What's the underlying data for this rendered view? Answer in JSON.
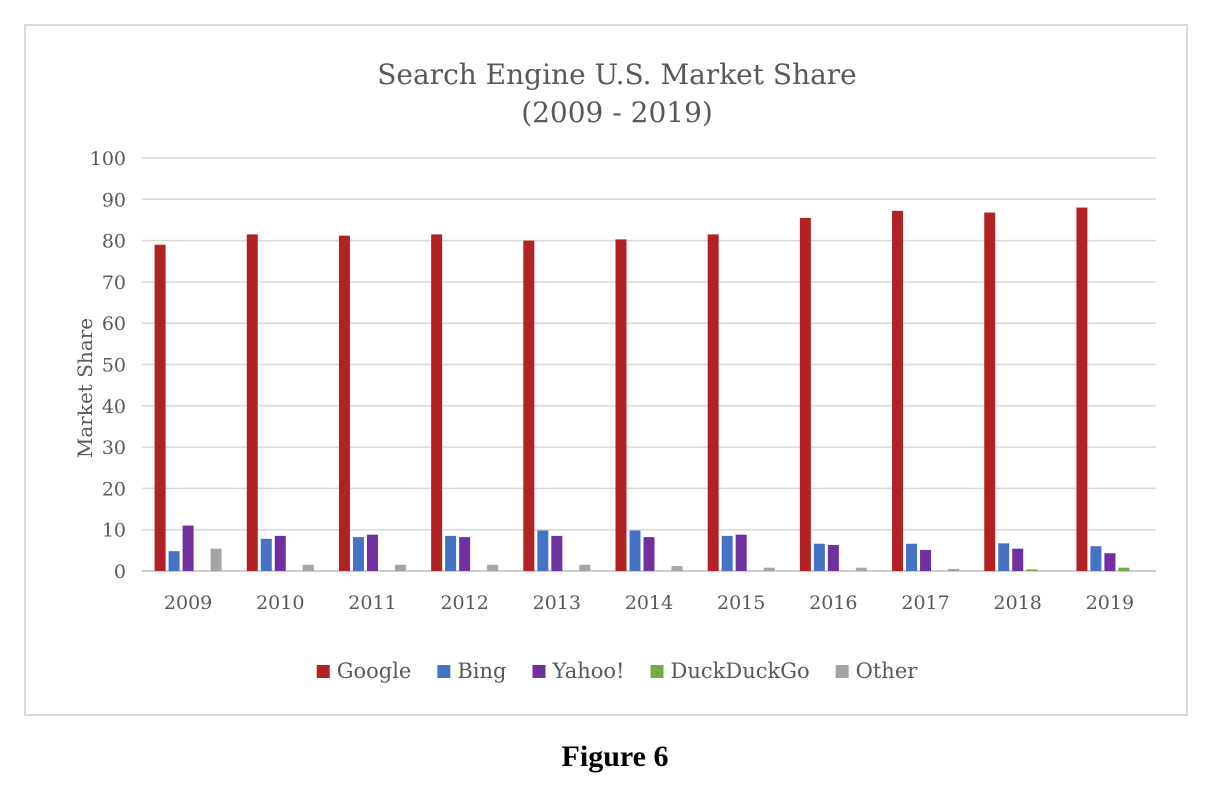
{
  "chart_data": {
    "type": "bar",
    "title": "Search Engine U.S. Market Share",
    "subtitle": "(2009 - 2019)",
    "xlabel": "",
    "ylabel": "Market Share",
    "ylim": [
      0,
      100
    ],
    "yticks": [
      0,
      10,
      20,
      30,
      40,
      50,
      60,
      70,
      80,
      90,
      100
    ],
    "grid": true,
    "legend_position": "bottom",
    "categories": [
      "2009",
      "2010",
      "2011",
      "2012",
      "2013",
      "2014",
      "2015",
      "2016",
      "2017",
      "2018",
      "2019"
    ],
    "series": [
      {
        "name": "Google",
        "color": "#b22222",
        "values": [
          79,
          81.5,
          81.2,
          81.5,
          80,
          80.3,
          81.5,
          85.5,
          87.2,
          86.8,
          88
        ]
      },
      {
        "name": "Bing",
        "color": "#4472c4",
        "values": [
          4.8,
          7.8,
          8.2,
          8.5,
          9.8,
          9.8,
          8.5,
          6.6,
          6.6,
          6.7,
          6
        ]
      },
      {
        "name": "Yahoo!",
        "color": "#7030a0",
        "values": [
          11,
          8.5,
          8.8,
          8.2,
          8.5,
          8.2,
          8.8,
          6.3,
          5.1,
          5.4,
          4.3
        ]
      },
      {
        "name": "DuckDuckGo",
        "color": "#70ad47",
        "values": [
          0,
          0,
          0,
          0,
          0,
          0,
          0,
          0,
          0,
          0.4,
          0.8
        ]
      },
      {
        "name": "Other",
        "color": "#a5a5a5",
        "values": [
          5.4,
          1.5,
          1.5,
          1.5,
          1.5,
          1.2,
          0.8,
          0.8,
          0.5,
          0,
          0
        ]
      }
    ]
  },
  "caption": "Figure 6"
}
